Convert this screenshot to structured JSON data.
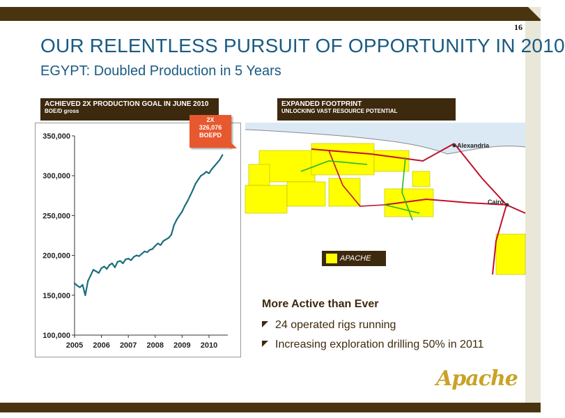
{
  "page_number": "16",
  "title": "OUR RELENTLESS PURSUIT OF OPPORTUNITY IN 2010",
  "subtitle": "EGYPT: Doubled Production in 5 Years",
  "left_panel": {
    "header_line1": "ACHIEVED 2X  PRODUCTION GOAL IN JUNE 2010",
    "header_line2": "BOE/D gross"
  },
  "callout": {
    "line1": "2X",
    "line2": "326,076",
    "line3": "BOEPD"
  },
  "right_panel": {
    "header_line1": "EXPANDED FOOTPRINT",
    "header_line2": "UNLOCKING VAST RESOURCE POTENTIAL"
  },
  "map": {
    "city1": "Alexandria",
    "city2": "Cairo",
    "legend_label": "APACHE"
  },
  "bullets": {
    "heading": "More Active than Ever",
    "items": [
      "24 operated rigs running",
      "Increasing exploration drilling 50% in 2011"
    ]
  },
  "logo_text": "Apache",
  "colors": {
    "series": "#1a6e7e",
    "title": "#1a5a84",
    "header_bg": "#3d290d",
    "callout": "#e8582e",
    "apache_yellow": "#ffff00"
  },
  "chart_data": {
    "type": "line",
    "title": "",
    "xlabel": "",
    "ylabel": "",
    "ylim": [
      100000,
      350000
    ],
    "xlim": [
      2005,
      2010.7
    ],
    "y_ticks": [
      100000,
      150000,
      200000,
      250000,
      300000,
      350000
    ],
    "y_tick_labels": [
      "100,000",
      "150,000",
      "200,000",
      "250,000",
      "300,000",
      "350,000"
    ],
    "x_ticks": [
      2005,
      2006,
      2007,
      2008,
      2009,
      2010
    ],
    "x_tick_labels": [
      "2005",
      "2006",
      "2007",
      "2008",
      "2009",
      "2010"
    ],
    "grid": false,
    "series": [
      {
        "x": [
          2005.0,
          2005.1,
          2005.2,
          2005.3,
          2005.4,
          2005.5,
          2005.6,
          2005.7,
          2005.8,
          2005.9,
          2006.0,
          2006.1,
          2006.2,
          2006.3,
          2006.4,
          2006.5,
          2006.6,
          2006.7,
          2006.8,
          2006.9,
          2007.0,
          2007.1,
          2007.2,
          2007.3,
          2007.4,
          2007.5,
          2007.6,
          2007.7,
          2007.8,
          2007.9,
          2008.0,
          2008.1,
          2008.2,
          2008.3,
          2008.4,
          2008.5,
          2008.6,
          2008.7,
          2008.8,
          2008.9,
          2009.0,
          2009.1,
          2009.2,
          2009.3,
          2009.4,
          2009.5,
          2009.6,
          2009.7,
          2009.8,
          2009.9,
          2010.0,
          2010.1,
          2010.2,
          2010.3,
          2010.4,
          2010.5
        ],
        "values": [
          165000,
          162000,
          160000,
          163000,
          150000,
          168000,
          175000,
          182000,
          180000,
          178000,
          184000,
          186000,
          183000,
          188000,
          190000,
          185000,
          192000,
          193000,
          190000,
          195000,
          196000,
          194000,
          198000,
          200000,
          199000,
          202000,
          205000,
          204000,
          207000,
          208000,
          212000,
          215000,
          213000,
          218000,
          220000,
          222000,
          226000,
          238000,
          245000,
          250000,
          255000,
          262000,
          268000,
          275000,
          282000,
          290000,
          295000,
          300000,
          302000,
          305000,
          303000,
          308000,
          312000,
          316000,
          320000,
          326000
        ]
      }
    ]
  }
}
